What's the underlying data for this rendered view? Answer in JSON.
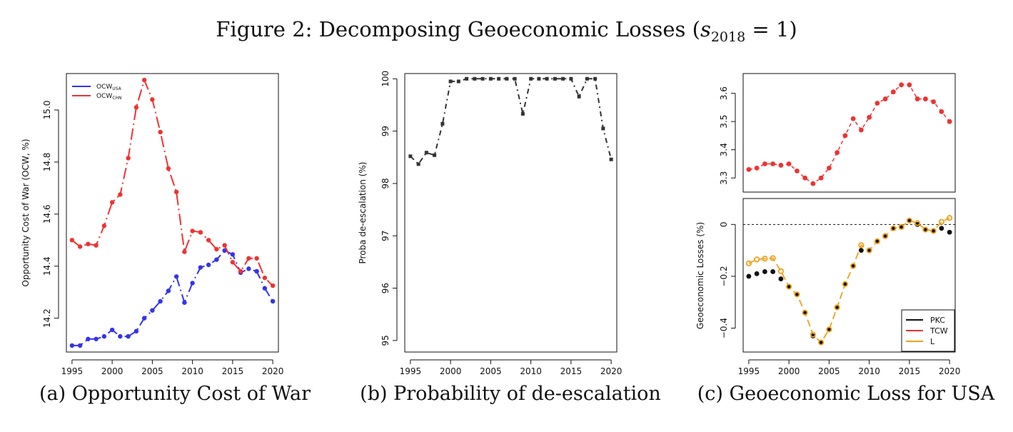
{
  "figure_title": {
    "lead": "Figure 2: Decomposing Geoeconomic Losses (",
    "var": "s",
    "sub": "2018",
    "tail": " = 1)"
  },
  "captions": {
    "a": "(a) Opportunity Cost of War",
    "b": "(b) Probability of de-escalation",
    "c": "(c) Geoeconomic Loss for USA"
  },
  "colors": {
    "blue": "#3333ee",
    "red": "#ee3333",
    "orange": "#f0a01a",
    "black": "#111111",
    "gray": "#333333"
  },
  "chart_data": [
    {
      "id": "a",
      "type": "line",
      "title": "(a) Opportunity Cost of War",
      "ylabel": "Opportunity Cost of War (OCW, %)",
      "xlabel": "",
      "x": [
        1995,
        1996,
        1997,
        1998,
        1999,
        2000,
        2001,
        2002,
        2003,
        2004,
        2005,
        2006,
        2007,
        2008,
        2009,
        2010,
        2011,
        2012,
        2013,
        2014,
        2015,
        2016,
        2017,
        2018,
        2019,
        2020
      ],
      "xticks": [
        1995,
        2000,
        2005,
        2010,
        2015,
        2020
      ],
      "yticks": [
        14.2,
        14.4,
        14.6,
        14.8,
        15.0
      ],
      "ytick_labels": [
        "14.2",
        "14.4",
        "14.6",
        "14.8",
        "15.0"
      ],
      "xlim": [
        1994.3,
        2020.7
      ],
      "ylim": [
        14.07,
        15.14
      ],
      "legend_position": "top-left",
      "series": [
        {
          "key": "usa",
          "legend_main": "OCW",
          "legend_sub": "USA",
          "color": "#3333ee",
          "values": [
            14.095,
            14.095,
            14.12,
            14.12,
            14.13,
            14.155,
            14.13,
            14.13,
            14.15,
            14.2,
            14.23,
            14.265,
            14.305,
            14.36,
            14.26,
            14.335,
            14.395,
            14.405,
            14.425,
            14.46,
            14.445,
            14.375,
            14.39,
            14.38,
            14.315,
            14.265
          ]
        },
        {
          "key": "chn",
          "legend_main": "OCW",
          "legend_sub": "CHN",
          "color": "#ee3333",
          "values": [
            14.5,
            14.475,
            14.485,
            14.48,
            14.555,
            14.645,
            14.675,
            14.815,
            15.01,
            15.115,
            15.04,
            14.915,
            14.775,
            14.685,
            14.455,
            14.535,
            14.53,
            14.5,
            14.465,
            14.48,
            14.415,
            14.38,
            14.43,
            14.43,
            14.355,
            14.325
          ]
        }
      ]
    },
    {
      "id": "b",
      "type": "line",
      "title": "(b) Probability of de-escalation",
      "ylabel": "Proba de-escalation (%)",
      "xlabel": "",
      "x": [
        1995,
        1996,
        1997,
        1998,
        1999,
        2000,
        2001,
        2002,
        2003,
        2004,
        2005,
        2006,
        2007,
        2008,
        2009,
        2010,
        2011,
        2012,
        2013,
        2014,
        2015,
        2016,
        2017,
        2018,
        2019,
        2020
      ],
      "xticks": [
        1995,
        2000,
        2005,
        2010,
        2015,
        2020
      ],
      "yticks": [
        95,
        96,
        97,
        98,
        99,
        100
      ],
      "ytick_labels": [
        "95",
        "96",
        "97",
        "98",
        "99",
        "100"
      ],
      "xlim": [
        1994.3,
        2020.7
      ],
      "ylim": [
        94.78,
        100.1
      ],
      "series": [
        {
          "key": "proba",
          "color": "#333333",
          "values": [
            98.52,
            98.37,
            98.59,
            98.54,
            99.14,
            99.95,
            99.95,
            100.0,
            100.0,
            100.0,
            100.0,
            100.0,
            100.0,
            100.0,
            99.33,
            100.0,
            100.0,
            100.0,
            100.0,
            100.0,
            100.0,
            99.66,
            100.0,
            100.0,
            99.05,
            98.46
          ]
        }
      ]
    },
    {
      "id": "c_top",
      "type": "scatter",
      "title": "(c) Geoeconomic Loss for USA",
      "ylabel": "Geoeconomic Losses (%)",
      "xlabel": "",
      "x": [
        1995,
        1996,
        1997,
        1998,
        1999,
        2000,
        2001,
        2002,
        2003,
        2004,
        2005,
        2006,
        2007,
        2008,
        2009,
        2010,
        2011,
        2012,
        2013,
        2014,
        2015,
        2016,
        2017,
        2018,
        2019,
        2020
      ],
      "yticks": [
        3.3,
        3.4,
        3.5,
        3.6
      ],
      "ytick_labels": [
        "3.3",
        "3.4",
        "3.5",
        "3.6"
      ],
      "xlim": [
        1994.3,
        2020.7
      ],
      "ylim": [
        3.25,
        3.67
      ],
      "series": [
        {
          "key": "tcw",
          "name": "TCW",
          "color": "#ee3333",
          "values": [
            3.33,
            3.335,
            3.35,
            3.35,
            3.345,
            3.35,
            3.325,
            3.3,
            3.28,
            3.3,
            3.335,
            3.39,
            3.45,
            3.51,
            3.47,
            3.515,
            3.565,
            3.58,
            3.605,
            3.63,
            3.63,
            3.58,
            3.58,
            3.57,
            3.535,
            3.5
          ]
        }
      ]
    },
    {
      "id": "c_bottom",
      "type": "scatter",
      "title": "(c) Geoeconomic Loss for USA",
      "ylabel": "",
      "xlabel": "",
      "x": [
        1995,
        1996,
        1997,
        1998,
        1999,
        2000,
        2001,
        2002,
        2003,
        2004,
        2005,
        2006,
        2007,
        2008,
        2009,
        2010,
        2011,
        2012,
        2013,
        2014,
        2015,
        2016,
        2017,
        2018,
        2019,
        2020
      ],
      "xticks": [
        1995,
        2000,
        2005,
        2010,
        2015,
        2020
      ],
      "yticks": [
        -0.4,
        -0.2,
        0
      ],
      "ytick_labels": [
        "−0.4",
        "−0.2",
        "0"
      ],
      "xlim": [
        1994.3,
        2020.7
      ],
      "ylim": [
        -0.492,
        0.1
      ],
      "hline": 0,
      "legend_position": "bottom-right",
      "legend": [
        "PKC",
        "TCW",
        "L"
      ],
      "series": [
        {
          "key": "pkc",
          "name": "PKC",
          "color": "#111111",
          "values": [
            -0.2,
            -0.19,
            -0.182,
            -0.182,
            -0.21,
            -0.24,
            -0.27,
            -0.34,
            -0.43,
            -0.455,
            -0.405,
            -0.32,
            -0.23,
            -0.16,
            -0.1,
            -0.1,
            -0.065,
            -0.045,
            -0.015,
            -0.01,
            0.015,
            0.0,
            -0.02,
            -0.025,
            -0.015,
            -0.03
          ]
        },
        {
          "key": "tcw",
          "name": "TCW",
          "color": "#ee3333",
          "values": []
        },
        {
          "key": "l",
          "name": "L",
          "color": "#f0a01a",
          "values": [
            -0.15,
            -0.135,
            -0.132,
            -0.13,
            -0.18,
            -0.24,
            -0.27,
            -0.34,
            -0.425,
            -0.455,
            -0.405,
            -0.32,
            -0.23,
            -0.16,
            -0.08,
            -0.1,
            -0.065,
            -0.045,
            -0.015,
            -0.01,
            0.015,
            0.005,
            -0.02,
            -0.025,
            0.01,
            0.025
          ]
        }
      ]
    }
  ]
}
